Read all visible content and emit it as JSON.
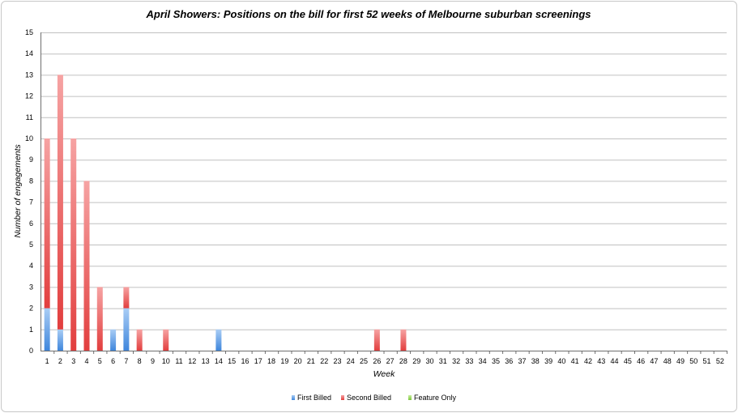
{
  "chart_data": {
    "type": "bar",
    "stacked": true,
    "title": "April Showers: Positions on the bill for first 52 weeks of Melbourne suburban screenings",
    "xlabel": "Week",
    "ylabel": "Number of engagements",
    "ylim": [
      0,
      15
    ],
    "grid": true,
    "legend_position": "bottom",
    "categories": [
      "1",
      "2",
      "3",
      "4",
      "5",
      "6",
      "7",
      "8",
      "9",
      "10",
      "11",
      "12",
      "13",
      "14",
      "15",
      "16",
      "17",
      "18",
      "19",
      "20",
      "21",
      "22",
      "23",
      "24",
      "25",
      "26",
      "27",
      "28",
      "29",
      "30",
      "31",
      "32",
      "33",
      "34",
      "35",
      "36",
      "37",
      "38",
      "39",
      "40",
      "41",
      "42",
      "43",
      "44",
      "45",
      "46",
      "47",
      "48",
      "49",
      "50",
      "51",
      "52"
    ],
    "series": [
      {
        "name": "First Billed",
        "color": "#4a8fe0",
        "values": [
          2,
          1,
          0,
          0,
          0,
          1,
          2,
          0,
          0,
          0,
          0,
          0,
          0,
          1,
          0,
          0,
          0,
          0,
          0,
          0,
          0,
          0,
          0,
          0,
          0,
          0,
          0,
          0,
          0,
          0,
          0,
          0,
          0,
          0,
          0,
          0,
          0,
          0,
          0,
          0,
          0,
          0,
          0,
          0,
          0,
          0,
          0,
          0,
          0,
          0,
          0,
          0
        ]
      },
      {
        "name": "Second Billed",
        "color": "#e84848",
        "values": [
          8,
          12,
          10,
          8,
          3,
          0,
          1,
          1,
          0,
          1,
          0,
          0,
          0,
          0,
          0,
          0,
          0,
          0,
          0,
          0,
          0,
          0,
          0,
          0,
          0,
          1,
          0,
          1,
          0,
          0,
          0,
          0,
          0,
          0,
          0,
          0,
          0,
          0,
          0,
          0,
          0,
          0,
          0,
          0,
          0,
          0,
          0,
          0,
          0,
          0,
          0,
          0
        ]
      },
      {
        "name": "Feature Only",
        "color": "#8fd14f",
        "values": [
          0,
          0,
          0,
          0,
          0,
          0,
          0,
          0,
          0,
          0,
          0,
          0,
          0,
          0,
          0,
          0,
          0,
          0,
          0,
          0,
          0,
          0,
          0,
          0,
          0,
          0,
          0,
          0,
          0,
          0,
          0,
          0,
          0,
          0,
          0,
          0,
          0,
          0,
          0,
          0,
          0,
          0,
          0,
          0,
          0,
          0,
          0,
          0,
          0,
          0,
          0,
          0
        ]
      }
    ]
  }
}
